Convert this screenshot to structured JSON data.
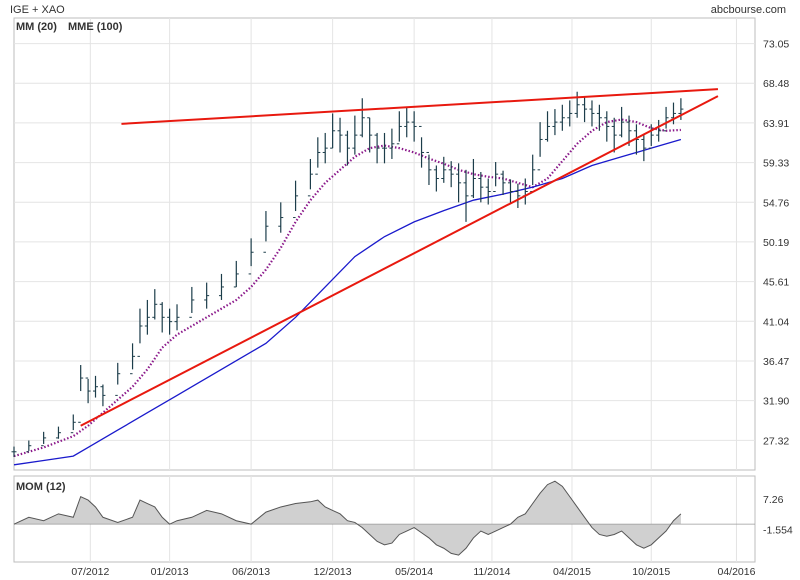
{
  "header": {
    "title": "IGE + XAO",
    "source": "abcbourse.com",
    "legend": [
      {
        "label": "MM (20)",
        "color": "#8b1a8b"
      },
      {
        "label": "MME (100)",
        "color": "#1a1acc"
      }
    ]
  },
  "momentum": {
    "title": "MOM (12)",
    "ticks": [
      "7.26",
      "-1.554"
    ],
    "tick_values": [
      7.26,
      -1.554
    ],
    "fill_color": "#d0d0d0"
  },
  "chart_data": {
    "type": "line",
    "title": "IGE + XAO",
    "y_ticks": [
      27.32,
      31.9,
      36.47,
      41.04,
      45.61,
      50.19,
      54.76,
      59.33,
      63.91,
      68.48,
      73.05
    ],
    "y_tick_labels": [
      "27.32",
      "31.90",
      "36.47",
      "41.04",
      "45.61",
      "50.19",
      "54.76",
      "59.33",
      "63.91",
      "68.48",
      "73.05"
    ],
    "ylim": [
      23.9,
      76.0
    ],
    "x_ticks": [
      "07/2012",
      "01/2013",
      "06/2013",
      "12/2013",
      "05/2014",
      "11/2014",
      "04/2015",
      "10/2015",
      "04/2016"
    ],
    "x_range": [
      0,
      100
    ],
    "x_tick_positions": [
      10.3,
      21.0,
      32.0,
      43.0,
      54.0,
      64.5,
      75.3,
      86.0,
      97.5
    ],
    "colors": {
      "price": "#1c3d4a",
      "mm20": "#8b1a8b",
      "mme100": "#1a1acc",
      "trendline": "#e8190f",
      "grid": "#e4e4e4"
    },
    "series": [
      {
        "name": "IGE + XAO",
        "style": "ohlc",
        "x": [
          0,
          2,
          4,
          6,
          8,
          9,
          10,
          11,
          12,
          14,
          16,
          17,
          18,
          19,
          20,
          21,
          22,
          24,
          26,
          28,
          30,
          32,
          34,
          36,
          38,
          40,
          41,
          42,
          43,
          44,
          45,
          46,
          47,
          48,
          49,
          50,
          51,
          52,
          53,
          54,
          55,
          56,
          57,
          58,
          59,
          60,
          61,
          62,
          63,
          64,
          65,
          66,
          67,
          68,
          69,
          70,
          71,
          72,
          73,
          74,
          75,
          76,
          77,
          78,
          79,
          80,
          81,
          82,
          83,
          84,
          85,
          86,
          87,
          88,
          89,
          90
        ],
        "values": [
          26.0,
          26.7,
          27.6,
          28.2,
          29.4,
          34.5,
          33.0,
          33.5,
          32.5,
          35.0,
          37.0,
          40.5,
          41.5,
          43.0,
          41.5,
          41.0,
          41.5,
          43.5,
          44.0,
          45.0,
          46.5,
          49.0,
          52.0,
          53.0,
          55.5,
          58.0,
          60.5,
          61.0,
          63.0,
          62.5,
          61.0,
          62.5,
          64.5,
          62.5,
          61.0,
          61.0,
          61.5,
          63.5,
          64.0,
          63.5,
          60.5,
          58.5,
          57.5,
          58.5,
          58.0,
          57.0,
          55.5,
          57.5,
          56.5,
          56.0,
          58.0,
          57.0,
          56.0,
          55.5,
          56.0,
          58.5,
          62.0,
          63.5,
          64.0,
          64.5,
          65.0,
          66.0,
          65.5,
          65.0,
          64.5,
          63.5,
          62.5,
          64.0,
          63.0,
          62.0,
          61.0,
          62.5,
          63.0,
          64.5,
          65.0,
          65.5
        ],
        "spread": [
          1.2,
          1.2,
          1.4,
          1.4,
          1.8,
          3.0,
          2.8,
          2.5,
          2.5,
          2.5,
          3.0,
          4.0,
          4.0,
          3.5,
          3.5,
          3.0,
          3.0,
          3.0,
          3.0,
          3.0,
          3.0,
          3.2,
          3.5,
          3.5,
          3.5,
          3.5,
          3.5,
          3.5,
          4.0,
          4.0,
          4.0,
          4.5,
          4.5,
          4.0,
          3.5,
          3.5,
          3.5,
          3.5,
          3.5,
          3.5,
          3.5,
          3.5,
          3.0,
          3.0,
          3.0,
          4.5,
          6.0,
          4.5,
          3.5,
          3.0,
          2.8,
          2.8,
          2.8,
          2.8,
          3.0,
          3.5,
          4.0,
          3.5,
          3.0,
          3.0,
          3.0,
          3.0,
          3.0,
          3.0,
          3.0,
          3.5,
          4.0,
          3.5,
          3.5,
          3.5,
          3.0,
          2.5,
          2.5,
          2.5,
          2.5,
          2.5
        ]
      },
      {
        "name": "MM (20)",
        "style": "dotted",
        "x": [
          0,
          4,
          8,
          10,
          12,
          14,
          16,
          18,
          20,
          22,
          24,
          26,
          28,
          30,
          32,
          34,
          36,
          38,
          40,
          42,
          44,
          46,
          48,
          50,
          52,
          54,
          56,
          58,
          60,
          62,
          64,
          66,
          68,
          70,
          72,
          74,
          76,
          78,
          80,
          82,
          84,
          86,
          88,
          90
        ],
        "values": [
          25.5,
          26.5,
          27.8,
          29.0,
          30.5,
          32.0,
          33.5,
          35.5,
          38.0,
          39.5,
          40.5,
          41.5,
          42.5,
          43.5,
          45.0,
          47.0,
          49.5,
          52.5,
          55.0,
          57.0,
          58.5,
          60.0,
          61.0,
          61.3,
          61.0,
          60.5,
          59.8,
          59.2,
          58.5,
          58.0,
          57.7,
          57.5,
          57.0,
          56.5,
          57.5,
          59.5,
          61.5,
          63.0,
          64.0,
          64.3,
          64.0,
          63.3,
          63.0,
          63.1
        ]
      },
      {
        "name": "MME (100)",
        "style": "solid",
        "x": [
          0,
          4,
          8,
          10,
          14,
          18,
          22,
          26,
          30,
          34,
          38,
          42,
          46,
          50,
          54,
          58,
          62,
          66,
          70,
          74,
          78,
          82,
          86,
          90
        ],
        "values": [
          24.5,
          25.0,
          25.5,
          26.5,
          28.5,
          30.5,
          32.5,
          34.5,
          36.5,
          38.5,
          41.5,
          45.0,
          48.5,
          50.8,
          52.5,
          53.8,
          55.0,
          55.7,
          56.5,
          57.5,
          59.0,
          60.0,
          61.0,
          62.0
        ]
      },
      {
        "name": "",
        "style": "trendline",
        "x": [
          14.5,
          95.0
        ],
        "values": [
          63.8,
          67.8
        ]
      },
      {
        "name": "",
        "style": "trendline",
        "x": [
          9.0,
          95.0
        ],
        "values": [
          29.0,
          67.0
        ]
      }
    ],
    "momentum": {
      "x": [
        0,
        2,
        4,
        6,
        8,
        9,
        10,
        11,
        12,
        14,
        16,
        17,
        18,
        19,
        20,
        21,
        22,
        24,
        26,
        28,
        30,
        32,
        34,
        36,
        38,
        40,
        41,
        42,
        43,
        44,
        45,
        46,
        47,
        48,
        49,
        50,
        51,
        52,
        53,
        54,
        55,
        56,
        57,
        58,
        59,
        60,
        61,
        62,
        63,
        64,
        65,
        66,
        67,
        68,
        69,
        70,
        71,
        72,
        73,
        74,
        75,
        76,
        77,
        78,
        79,
        80,
        81,
        82,
        83,
        84,
        85,
        86,
        87,
        88,
        89,
        90
      ],
      "values": [
        0.0,
        2.0,
        1.0,
        3.0,
        2.0,
        8.0,
        7.0,
        5.0,
        2.0,
        0.5,
        2.0,
        7.0,
        6.0,
        5.0,
        2.0,
        0.0,
        1.0,
        2.0,
        4.0,
        3.0,
        1.0,
        0.0,
        3.5,
        5.0,
        6.0,
        6.5,
        7.0,
        5.0,
        4.0,
        3.0,
        1.0,
        0.5,
        -1.0,
        -3.0,
        -5.0,
        -6.0,
        -5.5,
        -3.0,
        -2.0,
        -1.0,
        -2.5,
        -4.0,
        -6.0,
        -7.0,
        -8.5,
        -9.0,
        -7.0,
        -4.0,
        -2.0,
        -3.0,
        -2.0,
        -1.0,
        0.0,
        2.0,
        3.0,
        6.0,
        9.0,
        11.5,
        12.5,
        11.0,
        8.0,
        5.0,
        2.0,
        -1.0,
        -3.0,
        -3.5,
        -3.0,
        -2.0,
        -4.0,
        -6.0,
        -7.0,
        -6.0,
        -4.0,
        -2.0,
        1.0,
        3.0
      ],
      "ylim": [
        -11.0,
        14.0
      ]
    }
  }
}
